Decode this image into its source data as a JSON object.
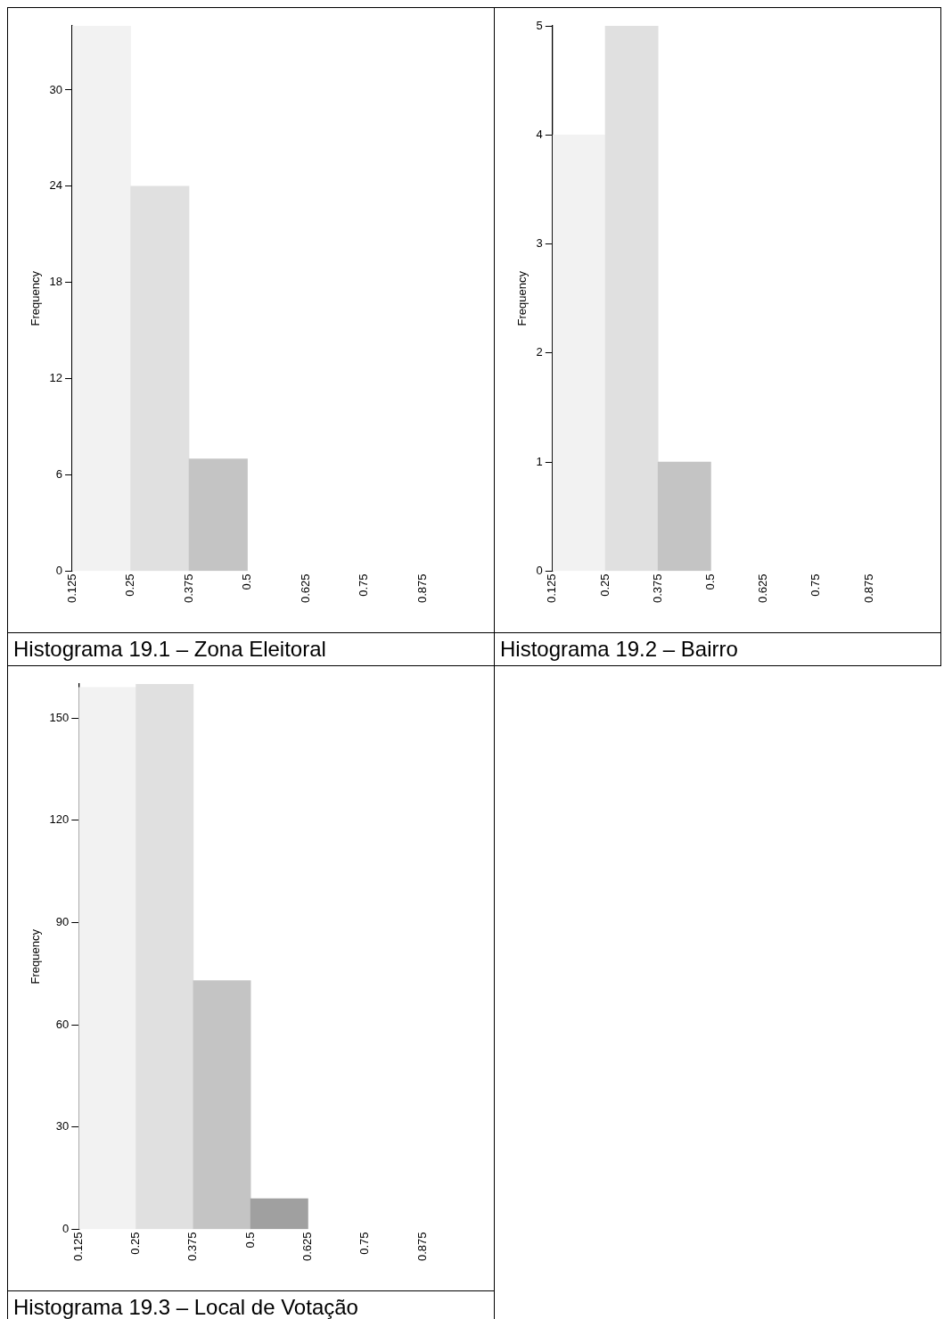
{
  "chart_data": [
    {
      "type": "histogram",
      "title": "Histograma 19.1 – Zona Eleitoral",
      "ylabel": "Frequency",
      "bins": [
        0.125,
        0.25,
        0.375,
        0.5
      ],
      "values": [
        34,
        24,
        7
      ],
      "colors": [
        "#f2f2f2",
        "#e0e0e0",
        "#c4c4c4"
      ],
      "xlim": [
        0.125,
        0.875
      ],
      "xticks": [
        0.125,
        0.25,
        0.375,
        0.5,
        0.625,
        0.75,
        0.875
      ],
      "ylim": [
        0,
        34
      ],
      "yticks": [
        0,
        6,
        12,
        18,
        24,
        30
      ],
      "grid": false,
      "legend": false
    },
    {
      "type": "histogram",
      "title": "Histograma 19.2 – Bairro",
      "ylabel": "Frequency",
      "bins": [
        0.125,
        0.25,
        0.375,
        0.5
      ],
      "values": [
        4,
        5,
        1
      ],
      "colors": [
        "#f2f2f2",
        "#e0e0e0",
        "#c4c4c4"
      ],
      "xlim": [
        0.125,
        0.875
      ],
      "xticks": [
        0.125,
        0.25,
        0.375,
        0.5,
        0.625,
        0.75,
        0.875
      ],
      "ylim": [
        0,
        5
      ],
      "yticks": [
        0,
        1,
        2,
        3,
        4,
        5
      ],
      "grid": false,
      "legend": false
    },
    {
      "type": "histogram",
      "title": "Histograma 19.3 – Local de Votação",
      "ylabel": "Frequency",
      "bins": [
        0.125,
        0.25,
        0.375,
        0.5,
        0.625
      ],
      "values": [
        159,
        160,
        73,
        9
      ],
      "colors": [
        "#f2f2f2",
        "#e0e0e0",
        "#c4c4c4",
        "#a0a0a0"
      ],
      "xlim": [
        0.125,
        0.875
      ],
      "xticks": [
        0.125,
        0.25,
        0.375,
        0.5,
        0.625,
        0.75,
        0.875
      ],
      "ylim": [
        0,
        160
      ],
      "yticks": [
        0,
        30,
        60,
        90,
        120,
        150
      ],
      "grid": false,
      "legend": false
    }
  ]
}
